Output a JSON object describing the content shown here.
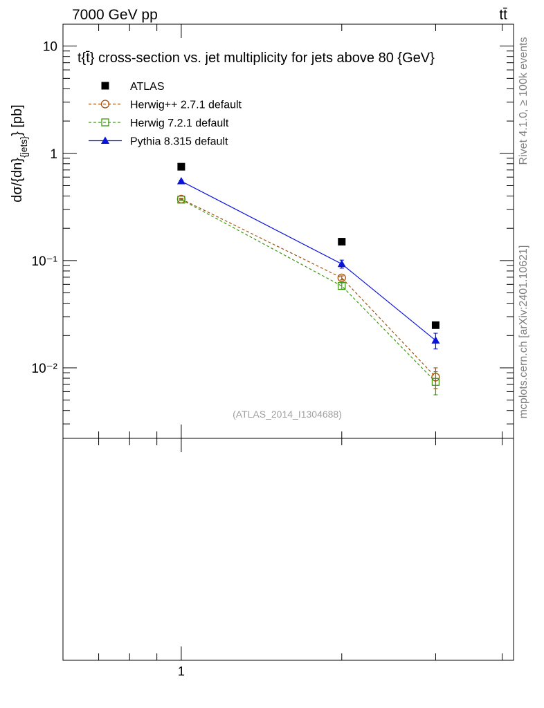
{
  "header": {
    "left": "7000 GeV pp",
    "right": "tt̄"
  },
  "side_labels": {
    "rivet": "Rivet 4.1.0, ≥ 100k events",
    "mcplots": "mcplots.cern.ch [arXiv:2401.10621]"
  },
  "chart_data": {
    "type": "scatter",
    "title": "t{t̄} cross-section vs. jet multiplicity for jets above 80 {GeV}",
    "xlabel": "",
    "ylabel": "dσ/{dn}_{jets} [pb]",
    "ylabel_main": "dσ/{dn}",
    "ylabel_sub": "{jets}",
    "ylabel_unit": "} [pb]",
    "ylog": true,
    "ylim": [
      0.0022,
      16
    ],
    "xlog": true,
    "xlim": [
      0.6,
      4.2
    ],
    "y_tick_labels": [
      "10",
      "1",
      "10⁻¹",
      "10⁻²"
    ],
    "x_tick_labels": [
      "1"
    ],
    "analysis_id": "(ATLAS_2014_I1304688)",
    "legend_position": "top-left",
    "grid": false,
    "series": [
      {
        "name": "ATLAS",
        "marker": "square-filled",
        "line": "none",
        "color": "#000000",
        "x": [
          1,
          2,
          3
        ],
        "y": [
          0.75,
          0.15,
          0.025
        ],
        "err": [
          0,
          0,
          0
        ]
      },
      {
        "name": "Herwig++ 2.7.1 default",
        "marker": "circle-open",
        "line": "dashed",
        "color": "#a0510d",
        "x": [
          1,
          2,
          3
        ],
        "y": [
          0.375,
          0.069,
          0.0082
        ],
        "err": [
          0.006,
          0.003,
          0.0018
        ]
      },
      {
        "name": "Herwig 7.2.1 default",
        "marker": "square-open",
        "line": "dashed",
        "color": "#3d9a0d",
        "x": [
          1,
          2,
          3
        ],
        "y": [
          0.37,
          0.058,
          0.0074
        ],
        "err": [
          0.006,
          0.004,
          0.0018
        ]
      },
      {
        "name": "Pythia 8.315 default",
        "marker": "triangle-filled",
        "line": "solid",
        "color": "#0a14d8",
        "x": [
          1,
          2,
          3
        ],
        "y": [
          0.55,
          0.093,
          0.018
        ],
        "err": [
          0.01,
          0.008,
          0.003
        ]
      }
    ]
  }
}
